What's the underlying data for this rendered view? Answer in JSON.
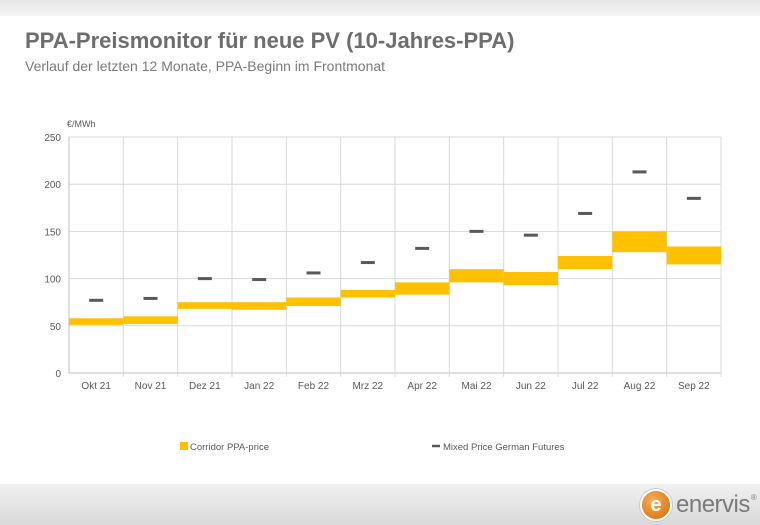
{
  "header": {
    "title": "PPA-Preismonitor für neue PV (10-Jahres-PPA)",
    "subtitle": "Verlauf der letzten 12 Monate, PPA-Beginn im Frontmonat"
  },
  "logo": {
    "text": "enervis",
    "mark": "e",
    "reg": "®"
  },
  "colors": {
    "corridor": "#ffc000",
    "futures": "#595959",
    "grid": "#d9d9d9",
    "axis": "#bfbfbf",
    "text": "#595959"
  },
  "chart_data": {
    "type": "bar",
    "ylabel": "€/MWh",
    "ylim": [
      0,
      250
    ],
    "yticks": [
      0,
      50,
      100,
      150,
      200,
      250
    ],
    "grid": true,
    "legend_position": "bottom",
    "categories": [
      "Okt 21",
      "Nov 21",
      "Dez 21",
      "Jan 22",
      "Feb 22",
      "Mrz 22",
      "Apr 22",
      "Mai 22",
      "Jun 22",
      "Jul 22",
      "Aug 22",
      "Sep 22"
    ],
    "series": [
      {
        "name": "Corridor PPA-price",
        "kind": "floating-range",
        "low": [
          51,
          52,
          68,
          67,
          71,
          80,
          83,
          96,
          93,
          110,
          128,
          115
        ],
        "high": [
          58,
          60,
          75,
          75,
          80,
          88,
          96,
          110,
          107,
          124,
          150,
          134
        ]
      },
      {
        "name": "Mixed Price German Futures",
        "kind": "marker",
        "values": [
          77,
          79,
          100,
          99,
          106,
          117,
          132,
          150,
          146,
          169,
          213,
          185
        ]
      }
    ]
  }
}
